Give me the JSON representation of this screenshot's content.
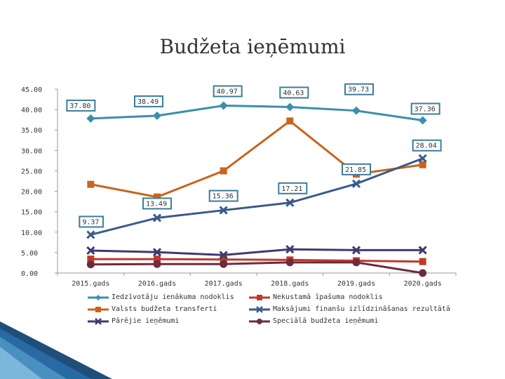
{
  "chart_data": {
    "type": "line",
    "title": "Budžeta ieņēmumi",
    "categories": [
      "2015.gads",
      "2016.gads",
      "2017.gads",
      "2018.gads",
      "2019.gads",
      "2020.gads"
    ],
    "ylim": [
      0,
      45
    ],
    "yticks": [
      "0.00",
      "5.00",
      "10.00",
      "15.00",
      "20.00",
      "25.00",
      "30.00",
      "35.00",
      "40.00",
      "45.00"
    ],
    "grid": false,
    "legend_position": "bottom",
    "series": [
      {
        "name": "Iedzīvotāju ienākuma nodoklis",
        "color": "#3a8fae",
        "marker": "diamond",
        "values": [
          37.8,
          38.49,
          40.97,
          40.63,
          39.73,
          37.36
        ],
        "labels": [
          "37.80",
          "38.49",
          "40.97",
          "40.63",
          "39.73",
          "37.36"
        ]
      },
      {
        "name": "Nekustamā īpašuma nodoklis",
        "color": "#c0392b",
        "marker": "square",
        "values": [
          3.4,
          3.4,
          3.3,
          3.2,
          3.0,
          2.8
        ],
        "labels": []
      },
      {
        "name": "Valsts budžeta transferti",
        "color": "#c8641e",
        "marker": "square",
        "values": [
          21.7,
          18.6,
          25.0,
          37.2,
          24.2,
          26.5
        ],
        "labels": []
      },
      {
        "name": "Maksājumi finanšu izlīdzināšanas rezultātā",
        "color": "#3a5a8c",
        "marker": "x",
        "values": [
          9.37,
          13.49,
          15.36,
          17.21,
          21.85,
          28.04
        ],
        "labels": [
          "9.37",
          "13.49",
          "15.36",
          "17.21",
          "21.85",
          "28.04"
        ]
      },
      {
        "name": "Pārējie ieņēmumi",
        "color": "#3d3b6e",
        "marker": "x",
        "values": [
          5.5,
          5.1,
          4.4,
          5.8,
          5.6,
          5.6
        ],
        "labels": []
      },
      {
        "name": "Speciālā budžeta ieņēmumi",
        "color": "#6b2d3e",
        "marker": "circle",
        "values": [
          2.1,
          2.2,
          2.2,
          2.6,
          2.6,
          0.0
        ],
        "labels": []
      }
    ]
  }
}
